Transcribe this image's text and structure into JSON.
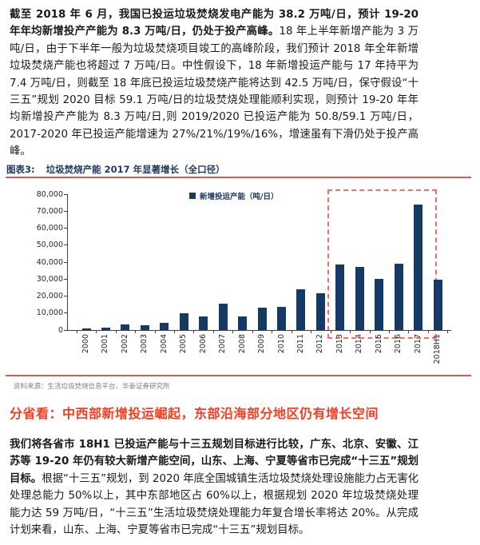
{
  "page": {
    "para1_bold": "截至 2018 年 6 月，我国已投运垃圾焚烧发电产能为 38.2 万吨/日，预计 19-20 年年均新增投产产能为 8.3 万吨/日，仍处于投产高峰。",
    "para1_rest": "18 年上半年新增产能为 3 万吨/日，由于下半年一般为垃圾焚烧项目竣工的高峰阶段，我们预计 2018 年全年新增垃圾焚烧产能也将超过 7 万吨/日。中性假设下，18 年新增投运产能与 17 年持平为 7.4 万吨/日，则截至 18 年底已投运垃圾焚烧产能将达到 42.5 万吨/日，保守假设“十三五”规划 2020 目标 59.1 万吨/日的垃圾焚烧处理能顺利实现，则预计 19-20 年年均新增投产产能为 8.3 万吨/日,则 2019/2020 已投运产能为 50.8/59.1 万吨/日，2017-2020 年已投运产能增速为 27%/21%/19%/16%，增速虽有下滑仍处于投产高峰。",
    "section_heading": "分省看：中西部新增投运崛起，东部沿海部分地区仍有增长空间",
    "para2_bold": "我们将各省市 18H1 已投运产能与十三五规划目标进行比较，广东、北京、安徽、江苏等 19-20 年仍有较大新增产能空间，山东、上海、宁夏等省市已完成“十三五”规划目标。",
    "para2_rest": "根据“十三五”规划，到 2020 年底全国城镇生活垃圾焚烧处理设施能力占无害化处理总能力 50%以上，其中东部地区占 60%以上，根据规划 2020 年垃圾焚烧处理能力达 59 万吨/日，“十三五”生活垃圾焚烧处理能力年复合增长率将达 20%。从完成计划来看，山东、上海、宁夏等省市已完成“十三五”规划目标。"
  },
  "figure": {
    "label": "图表3:",
    "title": "垃圾焚烧产能 2017 年显著增长（全口径）",
    "source": "资料来源：生活垃圾焚烧信息平台、华泰证券研究所"
  },
  "colors": {
    "bar": "#153a66",
    "navy": "#1f3864",
    "rule": "#db5b4d",
    "dash": "#f96a6a",
    "heading": "#fb3b1e",
    "source": "#7f7f7f",
    "text": "#1a1a1a"
  },
  "chart_data": {
    "type": "bar",
    "title": "垃圾焚烧产能 2017 年显著增长（全口径）",
    "xlabel": "",
    "ylabel": "",
    "categories": [
      "2000",
      "2001",
      "2002",
      "2003",
      "2004",
      "2005",
      "2006",
      "2007",
      "2008",
      "2009",
      "2010",
      "2011",
      "2012",
      "2013",
      "2014",
      "2015",
      "2016",
      "2017",
      "2018H1"
    ],
    "series": [
      {
        "name": "新增投运产能（吨/日）",
        "values": [
          800,
          1400,
          3300,
          2900,
          4400,
          10100,
          7800,
          15700,
          7800,
          13400,
          13800,
          24200,
          21500,
          38700,
          37100,
          30200,
          38900,
          73800,
          29500
        ]
      }
    ],
    "ylim": [
      0,
      80000
    ],
    "ytick_step": 10000,
    "grid": false,
    "legend_position": "top-center",
    "x_labels_rotation": 90,
    "highlight": {
      "from": "2013",
      "to": "2018H1",
      "style": "red dashed box"
    }
  }
}
